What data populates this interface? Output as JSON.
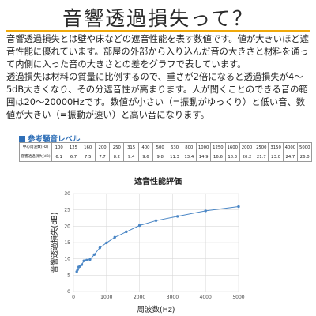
{
  "page": {
    "title": "音響透過損失って？",
    "paragraphs": [
      "音響透過損失とは壁や床などの遮音性能を表す数値です。値が大きいほど遮音性能に優れています。部屋の外部から入り込んだ音の大きさと材料を通って内側に入った音の大きさとの差をグラフで表しています。",
      "透過損失は材料の質量に比例するので、重さが2倍になると透過損失が4〜5dB大きくなり、その分遮音性が高まります。人が聞くことのできる音の範囲は20〜20000Hzです。数値が小さい（=振動がゆっくり）と低い音、数値が大きい（=振動が速い）と高い音になります。"
    ]
  },
  "reference": {
    "heading": "参考騒音レベル",
    "row_labels": [
      "中心周波数(Hz)",
      "音響透過損失(dB)"
    ],
    "frequencies": [
      "100",
      "125",
      "160",
      "200",
      "250",
      "315",
      "400",
      "500",
      "630",
      "800",
      "1000",
      "1250",
      "1600",
      "2000",
      "2500",
      "3150",
      "4000",
      "5000"
    ],
    "losses": [
      "6.1",
      "6.7",
      "7.5",
      "7.7",
      "8.2",
      "9.4",
      "9.6",
      "9.8",
      "11.3",
      "13.4",
      "14.9",
      "16.6",
      "18.3",
      "20.2",
      "21.7",
      "23.0",
      "24.7",
      "26.0"
    ]
  },
  "chart_data": {
    "type": "line",
    "title": "遮音性能評価",
    "xlabel": "周波数(Hz)",
    "ylabel": "音響透過損失(dB)",
    "xlim": [
      0,
      5000
    ],
    "ylim": [
      0,
      30
    ],
    "xticks": [
      0,
      1000,
      2000,
      3000,
      4000,
      5000
    ],
    "yticks": [
      0,
      5,
      10,
      15,
      20,
      25,
      30
    ],
    "grid": true,
    "color": "#4a86c5",
    "series": [
      {
        "x": [
          100,
          125,
          160,
          200,
          250,
          315,
          400,
          500,
          630,
          800,
          1000,
          1250,
          1600,
          2000,
          2500,
          3150,
          4000,
          5000
        ],
        "values": [
          6.1,
          6.7,
          7.5,
          7.7,
          8.2,
          9.4,
          9.6,
          9.8,
          11.3,
          13.4,
          14.9,
          16.6,
          18.3,
          20.2,
          21.7,
          23.0,
          24.7,
          26.0
        ]
      }
    ]
  },
  "colors": {
    "accent_rule": "#f0a90a",
    "heading_blue": "#2f6fb7",
    "line": "#4a86c5",
    "grid": "#d9d9d9"
  }
}
